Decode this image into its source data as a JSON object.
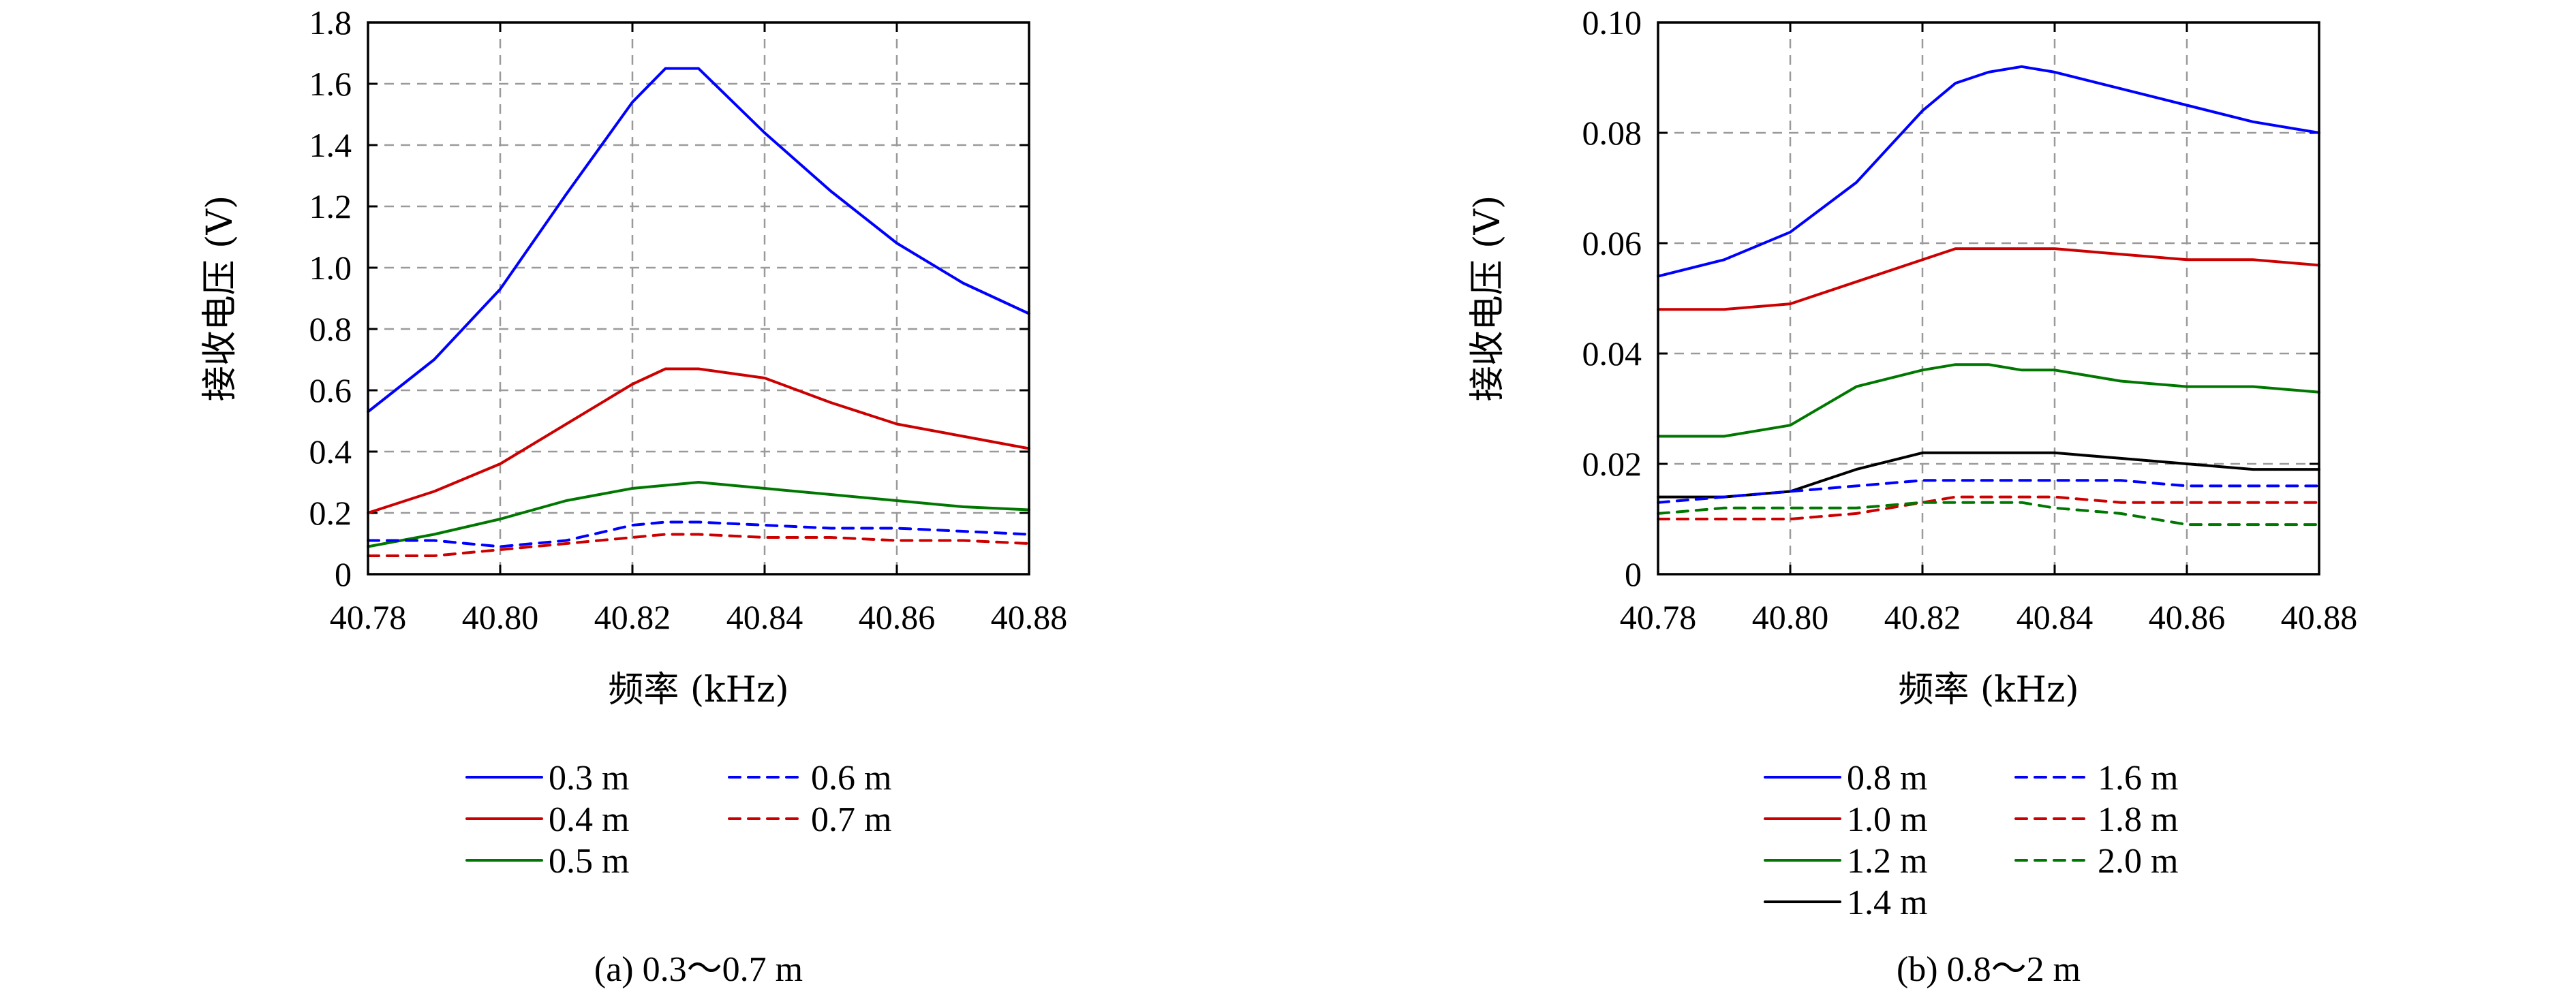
{
  "chart_data": [
    {
      "type": "line",
      "caption": "(a) 0.3～0.7 m",
      "xlabel": "频率 (kHz)",
      "ylabel": "接收电压 (V)",
      "xlim": [
        40.78,
        40.88
      ],
      "ylim": [
        0,
        1.8
      ],
      "xticks": [
        "40.78",
        "40.80",
        "40.82",
        "40.84",
        "40.86",
        "40.88"
      ],
      "yticks": [
        "0",
        "0.2",
        "0.4",
        "0.6",
        "0.8",
        "1.0",
        "1.2",
        "1.4",
        "1.6",
        "1.8"
      ],
      "grid": true,
      "legend_position": "bottom",
      "legend_columns": 2,
      "x": [
        40.78,
        40.79,
        40.8,
        40.81,
        40.82,
        40.825,
        40.83,
        40.84,
        40.85,
        40.86,
        40.87,
        40.88
      ],
      "series": [
        {
          "name": "0.3 m",
          "color": "#0000ff",
          "style": "solid",
          "values": [
            0.53,
            0.7,
            0.93,
            1.24,
            1.54,
            1.65,
            1.65,
            1.44,
            1.25,
            1.08,
            0.95,
            0.85
          ]
        },
        {
          "name": "0.4 m",
          "color": "#cc0000",
          "style": "solid",
          "values": [
            0.2,
            0.27,
            0.36,
            0.49,
            0.62,
            0.67,
            0.67,
            0.64,
            0.56,
            0.49,
            0.45,
            0.41
          ]
        },
        {
          "name": "0.5 m",
          "color": "#007700",
          "style": "solid",
          "values": [
            0.09,
            0.13,
            0.18,
            0.24,
            0.28,
            0.29,
            0.3,
            0.28,
            0.26,
            0.24,
            0.22,
            0.21
          ]
        },
        {
          "name": "0.6 m",
          "color": "#0000ff",
          "style": "dashed",
          "values": [
            0.11,
            0.11,
            0.09,
            0.11,
            0.16,
            0.17,
            0.17,
            0.16,
            0.15,
            0.15,
            0.14,
            0.13
          ]
        },
        {
          "name": "0.7 m",
          "color": "#cc0000",
          "style": "dashed",
          "values": [
            0.06,
            0.06,
            0.08,
            0.1,
            0.12,
            0.13,
            0.13,
            0.12,
            0.12,
            0.11,
            0.11,
            0.1
          ]
        }
      ]
    },
    {
      "type": "line",
      "caption": "(b) 0.8～2 m",
      "xlabel": "频率 (kHz)",
      "ylabel": "接收电压 (V)",
      "xlim": [
        40.78,
        40.88
      ],
      "ylim": [
        0,
        0.1
      ],
      "xticks": [
        "40.78",
        "40.80",
        "40.82",
        "40.84",
        "40.86",
        "40.88"
      ],
      "yticks": [
        "0",
        "0.02",
        "0.04",
        "0.06",
        "0.08",
        "0.10"
      ],
      "grid": true,
      "legend_position": "bottom",
      "legend_columns": 2,
      "x": [
        40.78,
        40.79,
        40.8,
        40.81,
        40.82,
        40.825,
        40.83,
        40.835,
        40.84,
        40.85,
        40.86,
        40.87,
        40.88
      ],
      "series": [
        {
          "name": "0.8 m",
          "color": "#0000ff",
          "style": "solid",
          "values": [
            0.054,
            0.057,
            0.062,
            0.071,
            0.084,
            0.089,
            0.091,
            0.092,
            0.091,
            0.088,
            0.085,
            0.082,
            0.08
          ]
        },
        {
          "name": "1.0 m",
          "color": "#cc0000",
          "style": "solid",
          "values": [
            0.048,
            0.048,
            0.049,
            0.053,
            0.057,
            0.059,
            0.059,
            0.059,
            0.059,
            0.058,
            0.057,
            0.057,
            0.056
          ]
        },
        {
          "name": "1.2 m",
          "color": "#007700",
          "style": "solid",
          "values": [
            0.025,
            0.025,
            0.027,
            0.034,
            0.037,
            0.038,
            0.038,
            0.037,
            0.037,
            0.035,
            0.034,
            0.034,
            0.033
          ]
        },
        {
          "name": "1.4 m",
          "color": "#000000",
          "style": "solid",
          "values": [
            0.014,
            0.014,
            0.015,
            0.019,
            0.022,
            0.022,
            0.022,
            0.022,
            0.022,
            0.021,
            0.02,
            0.019,
            0.019
          ]
        },
        {
          "name": "1.6 m",
          "color": "#0000ff",
          "style": "dashed",
          "values": [
            0.013,
            0.014,
            0.015,
            0.016,
            0.017,
            0.017,
            0.017,
            0.017,
            0.017,
            0.017,
            0.016,
            0.016,
            0.016
          ]
        },
        {
          "name": "1.8 m",
          "color": "#cc0000",
          "style": "dashed",
          "values": [
            0.01,
            0.01,
            0.01,
            0.011,
            0.013,
            0.014,
            0.014,
            0.014,
            0.014,
            0.013,
            0.013,
            0.013,
            0.013
          ]
        },
        {
          "name": "2.0 m",
          "color": "#007700",
          "style": "dashed",
          "values": [
            0.011,
            0.012,
            0.012,
            0.012,
            0.013,
            0.013,
            0.013,
            0.013,
            0.012,
            0.011,
            0.009,
            0.009,
            0.009
          ]
        }
      ]
    }
  ]
}
